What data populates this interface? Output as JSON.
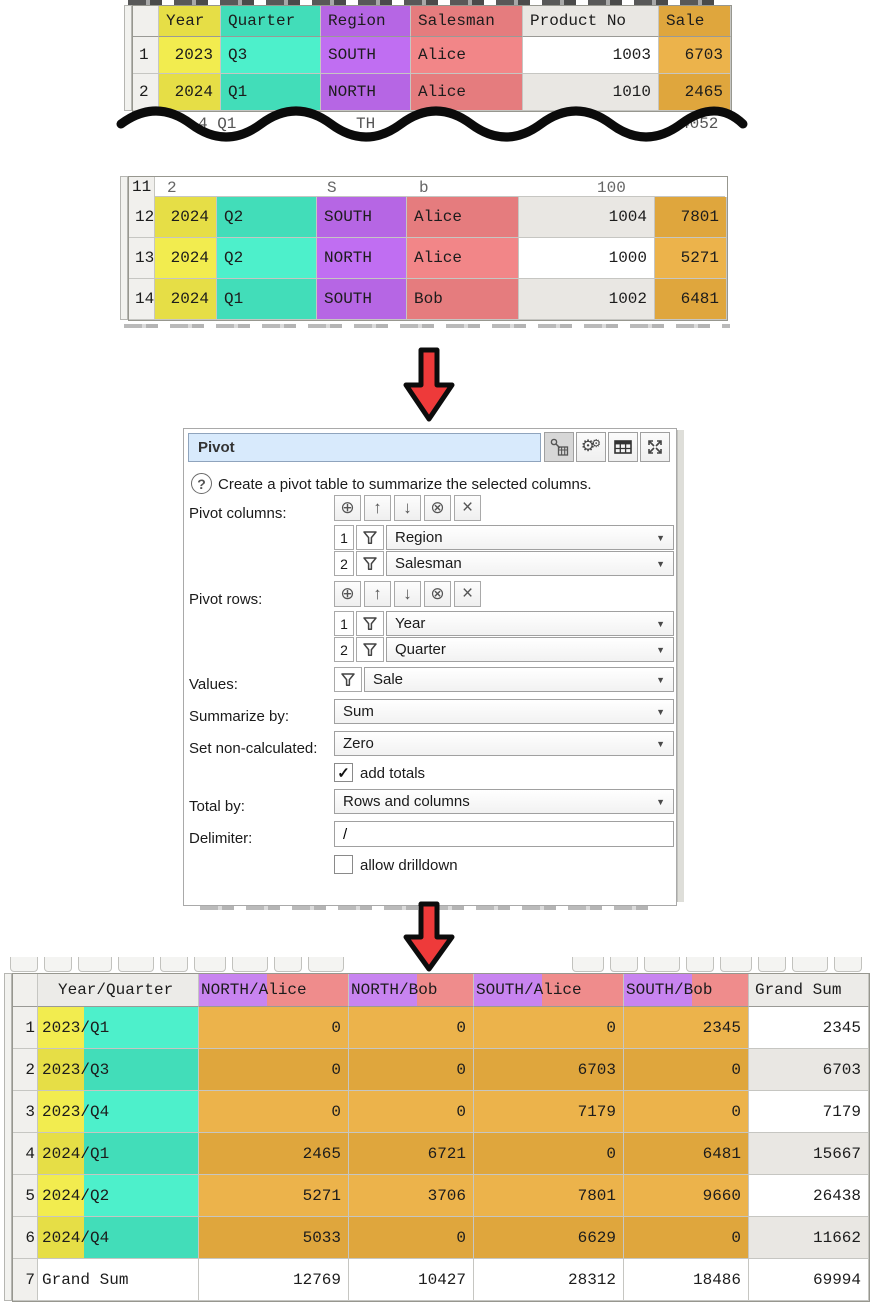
{
  "colors": {
    "yellow": "#f2ec4f",
    "yellow_dark": "#e6de46",
    "teal": "#4df0cb",
    "teal_dark": "#42ddb9",
    "purple": "#c06ef2",
    "purple_dark": "#b666e4",
    "salmon": "#f28688",
    "salmon_dark": "#e57c7e",
    "orange": "#ecb34b",
    "orange_dark": "#dfa63d",
    "arrow_red": "#ee3a3a",
    "title_field_blue": "#d8eafc"
  },
  "source_table": {
    "columns": [
      {
        "label": "Year",
        "key": "yellow"
      },
      {
        "label": "Quarter",
        "key": "teal"
      },
      {
        "label": "Region",
        "key": "purple"
      },
      {
        "label": "Salesman",
        "key": "salmon"
      },
      {
        "label": "Product No",
        "key": "plain"
      },
      {
        "label": "Sale",
        "key": "orange"
      }
    ],
    "piece1": {
      "rows": [
        {
          "n": "1",
          "cells": [
            "2023",
            "Q3",
            "SOUTH",
            "Alice",
            "1003",
            "6703"
          ]
        },
        {
          "n": "2",
          "cells": [
            "2024",
            "Q1",
            "NORTH",
            "Alice",
            "1010",
            "2465"
          ]
        }
      ],
      "tear_fragments": [
        "4 Q1",
        "TH",
        "4052"
      ]
    },
    "piece2": {
      "partial_row": {
        "n": "11",
        "fragments": [
          "2",
          "S",
          "b",
          "100"
        ]
      },
      "rows": [
        {
          "n": "12",
          "cells": [
            "2024",
            "Q2",
            "SOUTH",
            "Alice",
            "1004",
            "7801"
          ]
        },
        {
          "n": "13",
          "cells": [
            "2024",
            "Q2",
            "NORTH",
            "Alice",
            "1000",
            "5271"
          ]
        },
        {
          "n": "14",
          "cells": [
            "2024",
            "Q1",
            "SOUTH",
            "Bob",
            "1002",
            "6481"
          ]
        }
      ]
    }
  },
  "dialog": {
    "title": "Pivot",
    "toolbar_icons": [
      "node-table",
      "gears",
      "table",
      "expand"
    ],
    "description": "Create a pivot table to summarize the selected columns.",
    "pivot_columns": {
      "label": "Pivot columns:",
      "toolbar": [
        "add",
        "move-up",
        "move-down",
        "remove-circle",
        "remove-all"
      ],
      "items": [
        {
          "n": "1",
          "value": "Region"
        },
        {
          "n": "2",
          "value": "Salesman"
        }
      ]
    },
    "pivot_rows": {
      "label": "Pivot rows:",
      "toolbar": [
        "add",
        "move-up",
        "move-down",
        "remove-circle",
        "remove-all"
      ],
      "items": [
        {
          "n": "1",
          "value": "Year"
        },
        {
          "n": "2",
          "value": "Quarter"
        }
      ]
    },
    "values": {
      "label": "Values:",
      "value": "Sale"
    },
    "summarize_by": {
      "label": "Summarize by:",
      "value": "Sum"
    },
    "set_non_calculated": {
      "label": "Set non-calculated:",
      "value": "Zero"
    },
    "add_totals": {
      "label": "add totals",
      "checked": true,
      "check_glyph": "✓"
    },
    "total_by": {
      "label": "Total by:",
      "value": "Rows and columns"
    },
    "delimiter": {
      "label": "Delimiter:",
      "value": "/"
    },
    "allow_drilldown": {
      "label": "allow drilldown",
      "checked": false
    }
  },
  "result_table": {
    "row_header": "Year/Quarter",
    "grand_col": "Grand Sum",
    "col_headers": [
      {
        "region": "NORTH",
        "name": "/Alice"
      },
      {
        "region": "NORTH",
        "name": "/Bob"
      },
      {
        "region": "SOUTH",
        "name": "/Alice"
      },
      {
        "region": "SOUTH",
        "name": "/Bob"
      }
    ],
    "rows": [
      {
        "n": "1",
        "year": "2023",
        "quarter": "/Q1",
        "values": [
          "0",
          "0",
          "0",
          "2345"
        ],
        "total": "2345"
      },
      {
        "n": "2",
        "year": "2023",
        "quarter": "/Q3",
        "values": [
          "0",
          "0",
          "6703",
          "0"
        ],
        "total": "6703"
      },
      {
        "n": "3",
        "year": "2023",
        "quarter": "/Q4",
        "values": [
          "0",
          "0",
          "7179",
          "0"
        ],
        "total": "7179"
      },
      {
        "n": "4",
        "year": "2024",
        "quarter": "/Q1",
        "values": [
          "2465",
          "6721",
          "0",
          "6481"
        ],
        "total": "15667"
      },
      {
        "n": "5",
        "year": "2024",
        "quarter": "/Q2",
        "values": [
          "5271",
          "3706",
          "7801",
          "9660"
        ],
        "total": "26438"
      },
      {
        "n": "6",
        "year": "2024",
        "quarter": "/Q4",
        "values": [
          "5033",
          "0",
          "6629",
          "0"
        ],
        "total": "11662"
      },
      {
        "n": "7",
        "label": "Grand Sum",
        "values": [
          "12769",
          "10427",
          "28312",
          "18486"
        ],
        "total": "69994"
      }
    ]
  }
}
